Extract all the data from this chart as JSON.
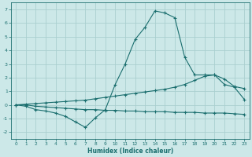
{
  "xlabel": "Humidex (Indice chaleur)",
  "bg_color": "#cce8e8",
  "grid_color": "#aacfcf",
  "line_color": "#1a6e6e",
  "xlim": [
    -0.5,
    23.5
  ],
  "ylim": [
    -2.5,
    7.5
  ],
  "xticks": [
    0,
    1,
    2,
    3,
    4,
    5,
    6,
    7,
    8,
    9,
    10,
    11,
    12,
    13,
    14,
    15,
    16,
    17,
    18,
    19,
    20,
    21,
    22,
    23
  ],
  "yticks": [
    -2,
    -1,
    0,
    1,
    2,
    3,
    4,
    5,
    6,
    7
  ],
  "line1_x": [
    0,
    1,
    2,
    3,
    4,
    5,
    6,
    7,
    8,
    9,
    10,
    11,
    12,
    13,
    14,
    15,
    16,
    17,
    18,
    19,
    20,
    21,
    22,
    23
  ],
  "line1_y": [
    0.0,
    -0.1,
    -0.35,
    -0.45,
    -0.6,
    -0.85,
    -1.25,
    -1.65,
    -0.95,
    -0.35,
    1.5,
    3.0,
    4.8,
    5.7,
    6.9,
    6.75,
    6.4,
    3.5,
    2.2,
    2.2,
    2.2,
    1.5,
    1.3,
    0.4
  ],
  "line2_x": [
    0,
    1,
    2,
    3,
    4,
    5,
    6,
    7,
    8,
    9,
    10,
    11,
    12,
    13,
    14,
    15,
    16,
    17,
    18,
    19,
    20,
    21,
    22,
    23
  ],
  "line2_y": [
    0.0,
    0.05,
    0.1,
    0.15,
    0.2,
    0.25,
    0.3,
    0.35,
    0.45,
    0.55,
    0.65,
    0.75,
    0.85,
    0.95,
    1.05,
    1.15,
    1.3,
    1.5,
    1.8,
    2.1,
    2.2,
    1.9,
    1.35,
    1.2
  ],
  "line3_x": [
    0,
    1,
    2,
    3,
    4,
    5,
    6,
    7,
    8,
    9,
    10,
    11,
    12,
    13,
    14,
    15,
    16,
    17,
    18,
    19,
    20,
    21,
    22,
    23
  ],
  "line3_y": [
    0.0,
    0.0,
    -0.1,
    -0.15,
    -0.2,
    -0.25,
    -0.3,
    -0.35,
    -0.35,
    -0.4,
    -0.4,
    -0.45,
    -0.45,
    -0.5,
    -0.5,
    -0.5,
    -0.55,
    -0.55,
    -0.55,
    -0.6,
    -0.6,
    -0.6,
    -0.65,
    -0.7
  ]
}
